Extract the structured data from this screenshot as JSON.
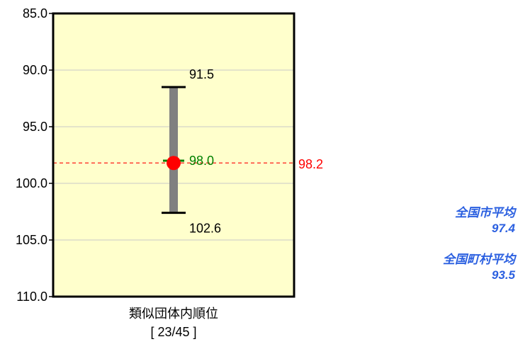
{
  "chart_data": {
    "type": "errorbar",
    "y_axis": {
      "min": 85.0,
      "max": 110.0,
      "inverted": true,
      "ticks": [
        "85.0",
        "90.0",
        "95.0",
        "100.0",
        "105.0",
        "110.0"
      ],
      "grid": true
    },
    "range": {
      "top": 91.5,
      "bottom": 102.6,
      "top_label": "91.5",
      "bottom_label": "102.6"
    },
    "marker": {
      "value": 98.0,
      "label": "98.0",
      "color": "#008000"
    },
    "point": {
      "value": 98.2,
      "color": "#ff0000"
    },
    "reference_line": {
      "value": 98.2,
      "label": "98.2",
      "color": "#ff0000"
    },
    "x_category": "類似団体内順位",
    "rank_text": "[ 23/45 ]",
    "plot_background": "#ffffcc"
  },
  "side_notes": [
    {
      "label": "全国市平均",
      "value": "97.4"
    },
    {
      "label": "全国町村平均",
      "value": "93.5"
    }
  ]
}
